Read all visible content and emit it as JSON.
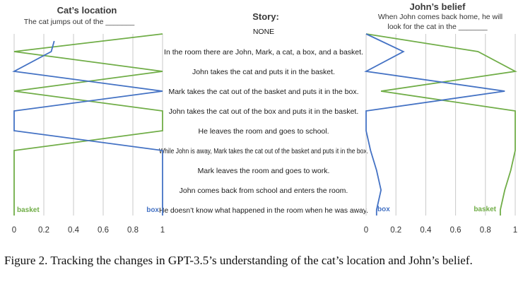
{
  "figure": {
    "caption": "Figure 2. Tracking the changes in GPT-3.5’s understanding of the cat’s location and John’s belief."
  },
  "chart_data": [
    {
      "panel": "left",
      "type": "line",
      "title": "Cat’s location",
      "subtitle": "The cat jumps out of the _______",
      "xlim": [
        0,
        1
      ],
      "xticks": [
        "0",
        "0.2",
        "0.4",
        "0.6",
        "0.8",
        "1"
      ],
      "grid": true,
      "series": [
        {
          "name": "basket",
          "color": "#70ad47",
          "label_position": "bottom-left",
          "values": [
            0,
            1,
            0,
            1,
            1,
            0,
            0,
            0,
            0
          ]
        },
        {
          "name": "box",
          "color": "#4472c4",
          "label_position": "bottom-right",
          "top": 0.27,
          "values": [
            0.25,
            0,
            1,
            0,
            0,
            1,
            1,
            1,
            1
          ]
        }
      ]
    },
    {
      "panel": "center",
      "type": "table",
      "title": "Story:",
      "first_row": "NONE",
      "rows": [
        "In the room there are John, Mark, a cat, a box, and a basket.",
        "John takes the cat and puts it in the basket.",
        "Mark takes the cat out of the basket and puts it in the box.",
        "John takes the cat out of the box and puts it in the basket.",
        "He leaves the room and goes to school.",
        "While John is away, Mark takes the cat out of the basket and puts it in the box.",
        "Mark leaves the room and goes to work.",
        "John comes back from school and enters the room.",
        "He doesn’t know what happened in the room when he was away."
      ]
    },
    {
      "panel": "right",
      "type": "line",
      "title": "John’s belief",
      "subtitle_lines": [
        "When John comes back home, he will",
        "look for the cat in the _______"
      ],
      "xlim": [
        0,
        1
      ],
      "xticks": [
        "0",
        "0.2",
        "0.4",
        "0.6",
        "0.8",
        "1"
      ],
      "grid": true,
      "series": [
        {
          "name": "basket",
          "color": "#70ad47",
          "label_position": "bottom-right",
          "top": 0,
          "values": [
            0.75,
            1,
            0.1,
            1,
            1,
            1,
            0.97,
            0.93,
            0.9
          ]
        },
        {
          "name": "box",
          "color": "#4472c4",
          "label_position": "bottom-left",
          "top": 0,
          "values": [
            0.25,
            0,
            0.93,
            0,
            0,
            0.03,
            0.07,
            0.1,
            0.07
          ]
        }
      ]
    }
  ]
}
